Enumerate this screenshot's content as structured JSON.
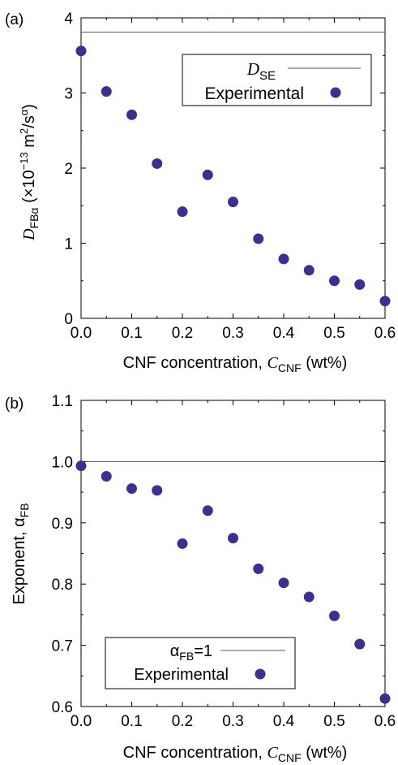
{
  "panels": [
    {
      "label": "(a)",
      "ylabel_prefix": "D",
      "ylabel_sub": "FBα",
      "ylabel_main": " (×10",
      "ylabel_exp": "−13",
      "ylabel_unit": " m",
      "ylabel_sq": "2",
      "ylabel_slash": "/s",
      "ylabel_alpha": "α",
      "ylabel_close": ")",
      "xlabel_prefix": "CNF concentration, ",
      "xlabel_var": "C",
      "xlabel_sub": "CNF",
      "xlabel_suffix": " (wt%)",
      "legend_ref_var": "D",
      "legend_ref_sub": "SE",
      "legend_exp": "Experimental"
    },
    {
      "label": "(b)",
      "ylabel": "Exponent, α",
      "ylabel_sub": "FB",
      "xlabel_prefix": "CNF concentration, ",
      "xlabel_var": "C",
      "xlabel_sub": "CNF",
      "xlabel_suffix": " (wt%)",
      "legend_ref_main": "α",
      "legend_ref_sub": "FB",
      "legend_ref_suffix": "=1",
      "legend_exp": "Experimental"
    }
  ],
  "chart_data": [
    {
      "type": "scatter",
      "xlim": [
        0.0,
        0.6
      ],
      "ylim": [
        0,
        4
      ],
      "x_ticks": [
        "0.0",
        "0.1",
        "0.2",
        "0.3",
        "0.4",
        "0.5",
        "0.6"
      ],
      "y_ticks": [
        "0",
        "1",
        "2",
        "3",
        "4"
      ],
      "reference_line": 3.81,
      "grid": false,
      "legend_position": "top-right",
      "marker_color": "#3b2f8f",
      "series": [
        {
          "name": "Experimental",
          "x": [
            0.0,
            0.05,
            0.1,
            0.15,
            0.2,
            0.25,
            0.3,
            0.35,
            0.4,
            0.45,
            0.5,
            0.55,
            0.6
          ],
          "y": [
            3.56,
            3.02,
            2.71,
            2.06,
            1.42,
            1.91,
            1.55,
            1.06,
            0.79,
            0.64,
            0.5,
            0.45,
            0.23
          ]
        }
      ]
    },
    {
      "type": "scatter",
      "xlim": [
        0.0,
        0.6
      ],
      "ylim": [
        0.6,
        1.1
      ],
      "x_ticks": [
        "0.0",
        "0.1",
        "0.2",
        "0.3",
        "0.4",
        "0.5",
        "0.6"
      ],
      "y_ticks": [
        "0.6",
        "0.7",
        "0.8",
        "0.9",
        "1.0",
        "1.1"
      ],
      "reference_line": 1.0,
      "grid": false,
      "legend_position": "bottom-left",
      "marker_color": "#3b2f8f",
      "series": [
        {
          "name": "Experimental",
          "x": [
            0.0,
            0.05,
            0.1,
            0.15,
            0.2,
            0.25,
            0.3,
            0.35,
            0.4,
            0.45,
            0.5,
            0.55,
            0.6
          ],
          "y": [
            0.993,
            0.976,
            0.956,
            0.953,
            0.866,
            0.92,
            0.875,
            0.825,
            0.802,
            0.779,
            0.748,
            0.702,
            0.613
          ]
        }
      ]
    }
  ]
}
